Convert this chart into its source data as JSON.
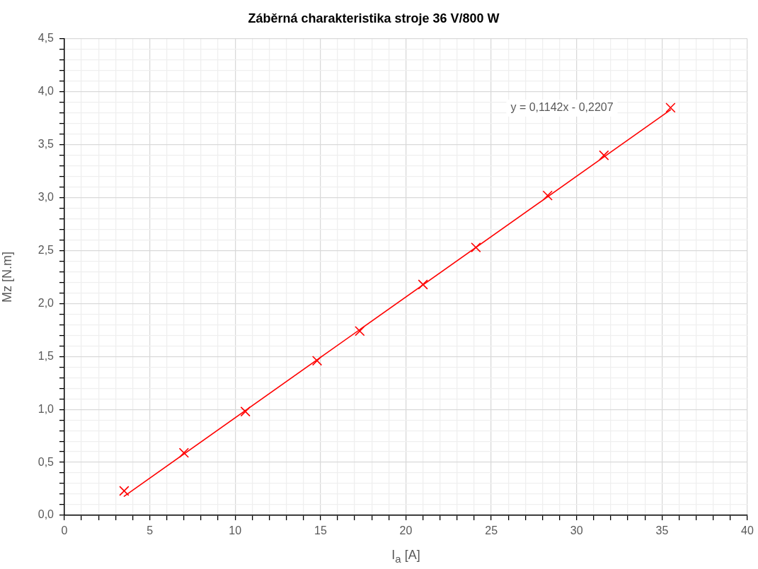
{
  "chart_data": {
    "type": "scatter",
    "title": "Záběrná charakteristika stroje 36 V/800 W",
    "xlabel": "I$_{a}$ [A]",
    "ylabel": "Mz [N.m]",
    "xlim": [
      0,
      40
    ],
    "ylim": [
      0,
      4.5
    ],
    "xticks": [
      0,
      {
        "value": 1,
        "label": null
      },
      {
        "value": 2,
        "label": null
      },
      {
        "value": 3,
        "label": null
      },
      {
        "value": 4,
        "label": null
      },
      5,
      {
        "value": 6,
        "label": null
      },
      {
        "value": 7,
        "label": null
      },
      {
        "value": 8,
        "label": null
      },
      {
        "value": 9,
        "label": null
      },
      10,
      {
        "value": 11,
        "label": null
      },
      {
        "value": 12,
        "label": null
      },
      {
        "value": 13,
        "label": null
      },
      {
        "value": 14,
        "label": null
      },
      15,
      {
        "value": 16,
        "label": null
      },
      {
        "value": 17,
        "label": null
      },
      {
        "value": 18,
        "label": null
      },
      {
        "value": 19,
        "label": null
      },
      20,
      {
        "value": 21,
        "label": null
      },
      {
        "value": 22,
        "label": null
      },
      {
        "value": 23,
        "label": null
      },
      {
        "value": 24,
        "label": null
      },
      25,
      {
        "value": 26,
        "label": null
      },
      {
        "value": 27,
        "label": null
      },
      {
        "value": 28,
        "label": null
      },
      {
        "value": 29,
        "label": null
      },
      30,
      {
        "value": 31,
        "label": null
      },
      {
        "value": 32,
        "label": null
      },
      {
        "value": 33,
        "label": null
      },
      {
        "value": 34,
        "label": null
      },
      35,
      {
        "value": 36,
        "label": null
      },
      {
        "value": 37,
        "label": null
      },
      {
        "value": 38,
        "label": null
      },
      {
        "value": 39,
        "label": null
      },
      40
    ],
    "yticks": [
      {
        "value": 0,
        "label": "0,0"
      },
      {
        "value": 0.1,
        "label": null
      },
      {
        "value": 0.2,
        "label": null
      },
      {
        "value": 0.3,
        "label": null
      },
      {
        "value": 0.4,
        "label": null
      },
      {
        "value": 0.5,
        "label": "0,5"
      },
      {
        "value": 0.6,
        "label": null
      },
      {
        "value": 0.7,
        "label": null
      },
      {
        "value": 0.8,
        "label": null
      },
      {
        "value": 0.9,
        "label": null
      },
      {
        "value": 1,
        "label": "1,0"
      },
      {
        "value": 1.1,
        "label": null
      },
      {
        "value": 1.2,
        "label": null
      },
      {
        "value": 1.3,
        "label": null
      },
      {
        "value": 1.4,
        "label": null
      },
      {
        "value": 1.5,
        "label": "1,5"
      },
      {
        "value": 1.6,
        "label": null
      },
      {
        "value": 1.7,
        "label": null
      },
      {
        "value": 1.8,
        "label": null
      },
      {
        "value": 1.9,
        "label": null
      },
      {
        "value": 2,
        "label": "2,0"
      },
      {
        "value": 2.1,
        "label": null
      },
      {
        "value": 2.2,
        "label": null
      },
      {
        "value": 2.3,
        "label": null
      },
      {
        "value": 2.4,
        "label": null
      },
      {
        "value": 2.5,
        "label": "2,5"
      },
      {
        "value": 2.6,
        "label": null
      },
      {
        "value": 2.7,
        "label": null
      },
      {
        "value": 2.8,
        "label": null
      },
      {
        "value": 2.9,
        "label": null
      },
      {
        "value": 3,
        "label": "3,0"
      },
      {
        "value": 3.1,
        "label": null
      },
      {
        "value": 3.2,
        "label": null
      },
      {
        "value": 3.3,
        "label": null
      },
      {
        "value": 3.4,
        "label": null
      },
      {
        "value": 3.5,
        "label": "3,5"
      },
      {
        "value": 3.6,
        "label": null
      },
      {
        "value": 3.7,
        "label": null
      },
      {
        "value": 3.8,
        "label": null
      },
      {
        "value": 3.9,
        "label": null
      },
      {
        "value": 4,
        "label": "4,0"
      },
      {
        "value": 4.1,
        "label": null
      },
      {
        "value": 4.2,
        "label": null
      },
      {
        "value": 4.3,
        "label": null
      },
      {
        "value": 4.4,
        "label": null
      },
      {
        "value": 4.5,
        "label": "4,5"
      }
    ],
    "grid": true,
    "legend": false,
    "series": [
      {
        "type": "scatter",
        "color": "#ff0000",
        "marker": "cross",
        "x": [
          3.5,
          7.0,
          10.6,
          14.8,
          17.3,
          21.0,
          24.1,
          28.3,
          31.6,
          35.5
        ],
        "values": [
          0.23,
          0.59,
          0.98,
          1.46,
          1.74,
          2.18,
          2.53,
          3.02,
          3.4,
          3.85
        ]
      },
      {
        "type": "line",
        "color": "#ff0000",
        "marker": "none",
        "line_style": "solid",
        "x": [
          3.5,
          35.5
        ],
        "values": [
          0.18,
          3.83
        ]
      }
    ],
    "annotations": [
      "y = 0,1142x - 0,2207"
    ]
  }
}
